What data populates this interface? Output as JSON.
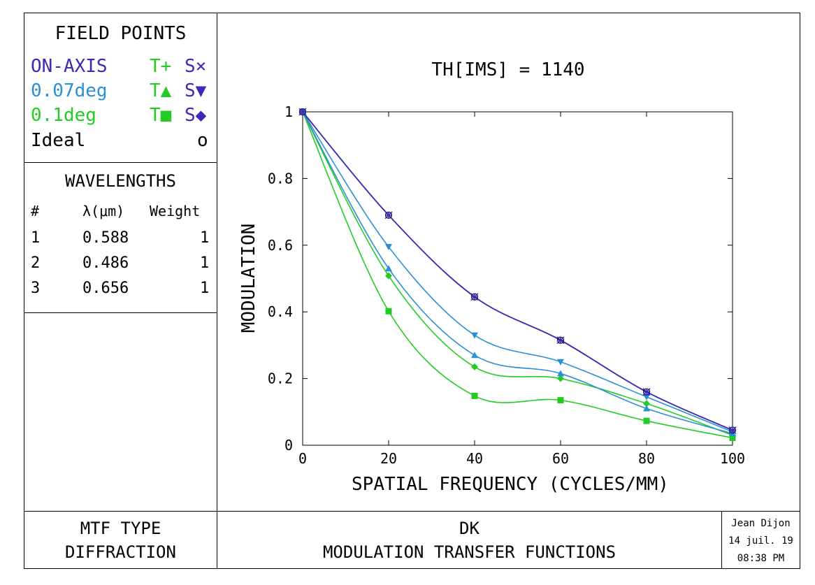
{
  "colors": {
    "on_axis": "#3b2ab8",
    "deg007": "#2b8fd6",
    "deg01": "#22cc22",
    "ideal": "#000000"
  },
  "field_points": {
    "heading": "FIELD POINTS",
    "items": [
      {
        "label": "ON-AXIS",
        "t": "T+",
        "s": "S×"
      },
      {
        "label": "0.07deg",
        "t": "T▲",
        "s": "S▼"
      },
      {
        "label": "0.1deg",
        "t": "T■",
        "s": "S◆"
      },
      {
        "label": "Ideal",
        "t": "",
        "s": "o"
      }
    ]
  },
  "wavelengths": {
    "heading": "WAVELENGTHS",
    "columns": [
      "#",
      "λ(μm)",
      "Weight"
    ],
    "rows": [
      [
        "1",
        "0.588",
        "1"
      ],
      [
        "2",
        "0.486",
        "1"
      ],
      [
        "3",
        "0.656",
        "1"
      ]
    ]
  },
  "footer": {
    "mtf_type_label": "MTF TYPE",
    "mtf_type_value": "DIFFRACTION",
    "system_name": "DK",
    "plot_name": "MODULATION TRANSFER FUNCTIONS",
    "author": "Jean Dijon",
    "date": "14 juil. 19",
    "time": "08:38 PM"
  },
  "chart_data": {
    "type": "line",
    "title": "TH[IMS] = 1140",
    "xlabel": "SPATIAL FREQUENCY (CYCLES/MM)",
    "ylabel": "MODULATION",
    "xlim": [
      0,
      100
    ],
    "ylim": [
      0,
      1
    ],
    "xticks": [
      0,
      20,
      40,
      60,
      80,
      100
    ],
    "yticks": [
      0,
      0.2,
      0.4,
      0.6,
      0.8,
      1
    ],
    "ytick_labels": [
      "0",
      "0.2",
      "0.4",
      "0.6",
      "0.8",
      "1"
    ],
    "grid": false,
    "x": [
      0,
      20,
      40,
      60,
      80,
      100
    ],
    "series": [
      {
        "name": "ON-AXIS T",
        "values": [
          1,
          0.69,
          0.445,
          0.315,
          0.16,
          0.045
        ],
        "marker": "plus",
        "color": "#3b2ab8"
      },
      {
        "name": "ON-AXIS S",
        "values": [
          1,
          0.69,
          0.445,
          0.315,
          0.16,
          0.045
        ],
        "marker": "x",
        "color": "#3b2ab8"
      },
      {
        "name": "Ideal",
        "values": [
          1,
          0.69,
          0.445,
          0.315,
          0.16,
          0.045
        ],
        "marker": "circle",
        "color": "#000000"
      },
      {
        "name": "0.07deg T",
        "values": [
          1,
          0.53,
          0.27,
          0.215,
          0.11,
          0.035
        ],
        "marker": "triangle-up",
        "color": "#2b8fd6"
      },
      {
        "name": "0.07deg S",
        "values": [
          1,
          0.595,
          0.33,
          0.25,
          0.145,
          0.04
        ],
        "marker": "triangle-down",
        "color": "#2b8fd6"
      },
      {
        "name": "0.1deg T",
        "values": [
          1,
          0.402,
          0.148,
          0.135,
          0.073,
          0.022
        ],
        "marker": "square",
        "color": "#22cc22"
      },
      {
        "name": "0.1deg S",
        "values": [
          1,
          0.508,
          0.235,
          0.2,
          0.125,
          0.03
        ],
        "marker": "diamond",
        "color": "#22cc22"
      }
    ]
  }
}
